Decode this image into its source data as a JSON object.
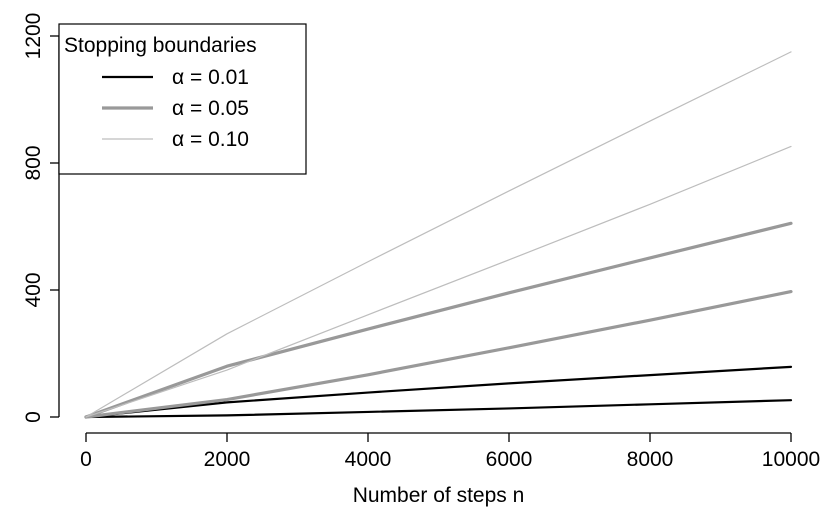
{
  "chart_data": {
    "type": "line",
    "xlabel": "Number of steps n",
    "ylabel": "",
    "xlim": [
      0,
      10000
    ],
    "ylim": [
      0,
      1200
    ],
    "x_ticks": [
      0,
      2000,
      4000,
      6000,
      8000,
      10000
    ],
    "y_ticks": [
      0,
      400,
      800,
      1200
    ],
    "x_tick_labels": [
      "0",
      "2000",
      "4000",
      "6000",
      "8000",
      "10000"
    ],
    "y_tick_labels": [
      "0",
      "400",
      "800",
      "1200"
    ],
    "grid": false,
    "legend": {
      "title": "Stopping boundaries",
      "placement": "top-left",
      "entries": [
        {
          "label": "α = 0.01",
          "color": "#000000",
          "weight": "medium"
        },
        {
          "label": "α = 0.05",
          "color": "#999999",
          "weight": "thick"
        },
        {
          "label": "α = 0.10",
          "color": "#bdbdbd",
          "weight": "thin"
        }
      ]
    },
    "series": [
      {
        "name": "α = 0.01",
        "role": "upper",
        "color": "#000000",
        "weight": "medium",
        "x": [
          0,
          2000,
          4000,
          6000,
          8000,
          10000
        ],
        "values": [
          0,
          46,
          77,
          106,
          132,
          158
        ]
      },
      {
        "name": "α = 0.01",
        "role": "lower",
        "color": "#000000",
        "weight": "medium",
        "x": [
          0,
          2000,
          4000,
          6000,
          8000,
          10000
        ],
        "values": [
          0,
          5,
          16,
          27,
          40,
          53
        ]
      },
      {
        "name": "α = 0.05",
        "role": "upper",
        "color": "#999999",
        "weight": "thick",
        "x": [
          0,
          2000,
          4000,
          6000,
          8000,
          10000
        ],
        "values": [
          0,
          160,
          277,
          391,
          501,
          610
        ]
      },
      {
        "name": "α = 0.05",
        "role": "lower",
        "color": "#999999",
        "weight": "thick",
        "x": [
          0,
          2000,
          4000,
          6000,
          8000,
          10000
        ],
        "values": [
          0,
          55,
          133,
          218,
          305,
          395
        ]
      },
      {
        "name": "α = 0.10",
        "role": "upper",
        "color": "#bdbdbd",
        "weight": "thin",
        "x": [
          0,
          2000,
          4000,
          6000,
          8000,
          10000
        ],
        "values": [
          0,
          262,
          489,
          712,
          932,
          1150
        ]
      },
      {
        "name": "α = 0.10",
        "role": "lower",
        "color": "#bdbdbd",
        "weight": "thin",
        "x": [
          0,
          2000,
          4000,
          6000,
          8000,
          10000
        ],
        "values": [
          0,
          148,
          322,
          495,
          670,
          852
        ]
      }
    ]
  }
}
